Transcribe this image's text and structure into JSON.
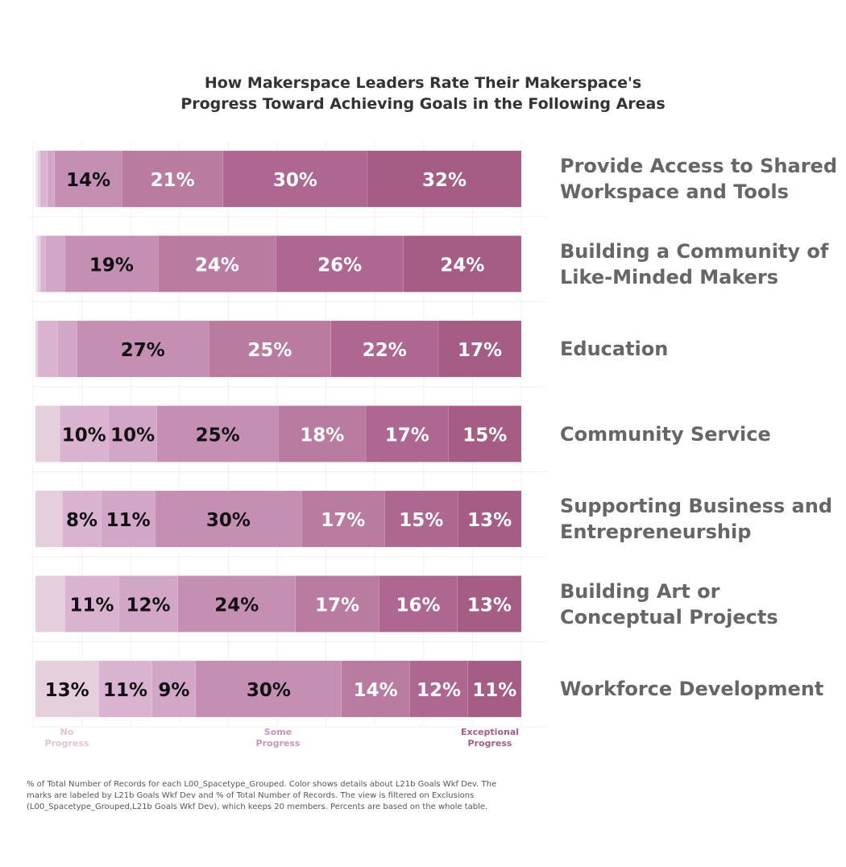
{
  "chart_data": {
    "type": "bar",
    "orientation": "horizontal",
    "stacked": true,
    "title_lines": [
      "How Makerspace Leaders Rate Their Makerspace's",
      "Progress Toward Achieving Goals in the Following Areas"
    ],
    "scale_labels": {
      "low": [
        "No",
        "Progress"
      ],
      "mid": [
        "Some",
        "Progress"
      ],
      "high": [
        "Exceptional",
        "Progress"
      ]
    },
    "colors": [
      "#f0e3eb",
      "#e6cfdd",
      "#d9b3cf",
      "#d2a6c6",
      "#c48fb3",
      "#b97b9f",
      "#ae6791",
      "#a55d86"
    ],
    "categories": [
      {
        "label_lines": [
          "Provide Access to Shared",
          "Workspace and Tools"
        ],
        "segments": [
          {
            "value": 0.5,
            "label": ""
          },
          {
            "value": 0.5,
            "label": ""
          },
          {
            "value": 1.5,
            "label": ""
          },
          {
            "value": 1.5,
            "label": ""
          },
          {
            "value": 14,
            "label": "14%"
          },
          {
            "value": 21,
            "label": "21%"
          },
          {
            "value": 30,
            "label": "30%"
          },
          {
            "value": 32,
            "label": "32%"
          }
        ]
      },
      {
        "label_lines": [
          "Building a Community of",
          "Like-Minded Makers"
        ],
        "segments": [
          {
            "value": 0.5,
            "label": ""
          },
          {
            "value": 0.5,
            "label": ""
          },
          {
            "value": 1,
            "label": ""
          },
          {
            "value": 4,
            "label": ""
          },
          {
            "value": 19,
            "label": "19%"
          },
          {
            "value": 24,
            "label": "24%"
          },
          {
            "value": 26,
            "label": "26%"
          },
          {
            "value": 24,
            "label": "24%"
          }
        ]
      },
      {
        "label_lines": [
          "Education"
        ],
        "segments": [
          {
            "value": 0.5,
            "label": ""
          },
          {
            "value": 4,
            "label": ""
          },
          {
            "value": 4,
            "label": ""
          },
          {
            "value": 27,
            "label": "27%"
          },
          {
            "value": 25,
            "label": "25%"
          },
          {
            "value": 22,
            "label": "22%"
          },
          {
            "value": 17,
            "label": "17%"
          }
        ]
      },
      {
        "label_lines": [
          "Community Service"
        ],
        "segments": [
          {
            "value": 5,
            "label": ""
          },
          {
            "value": 10,
            "label": "10%"
          },
          {
            "value": 10,
            "label": "10%"
          },
          {
            "value": 25,
            "label": "25%"
          },
          {
            "value": 18,
            "label": "18%"
          },
          {
            "value": 17,
            "label": "17%"
          },
          {
            "value": 15,
            "label": "15%"
          }
        ]
      },
      {
        "label_lines": [
          "Supporting Business and",
          "Entrepreneurship"
        ],
        "segments": [
          {
            "value": 5.5,
            "label": ""
          },
          {
            "value": 8,
            "label": "8%"
          },
          {
            "value": 11,
            "label": "11%"
          },
          {
            "value": 30,
            "label": "30%"
          },
          {
            "value": 17,
            "label": "17%"
          },
          {
            "value": 15,
            "label": "15%"
          },
          {
            "value": 13,
            "label": "13%"
          }
        ]
      },
      {
        "label_lines": [
          "Building Art or",
          "Conceptual Projects"
        ],
        "segments": [
          {
            "value": 6,
            "label": ""
          },
          {
            "value": 11,
            "label": "11%"
          },
          {
            "value": 12,
            "label": "12%"
          },
          {
            "value": 24,
            "label": "24%"
          },
          {
            "value": 17,
            "label": "17%"
          },
          {
            "value": 16,
            "label": "16%"
          },
          {
            "value": 13,
            "label": "13%"
          }
        ]
      },
      {
        "label_lines": [
          "Workforce Development"
        ],
        "segments": [
          {
            "value": 13,
            "label": "13%"
          },
          {
            "value": 11,
            "label": "11%"
          },
          {
            "value": 9,
            "label": "9%"
          },
          {
            "value": 30,
            "label": "30%"
          },
          {
            "value": 14,
            "label": "14%"
          },
          {
            "value": 12,
            "label": "12%"
          },
          {
            "value": 11,
            "label": "11%"
          }
        ]
      }
    ],
    "grid": true,
    "legend": "none"
  },
  "footnote_lines": [
    "% of Total Number of Records for each L00_Spacetype_Grouped.  Color shows details about L21b Goals Wkf Dev.  The",
    "marks are labeled by L21b Goals Wkf Dev and % of Total Number of Records. The view is filtered on Exclusions",
    "(L00_Spacetype_Grouped,L21b Goals Wkf Dev), which keeps 20 members. Percents are based on the whole table."
  ]
}
